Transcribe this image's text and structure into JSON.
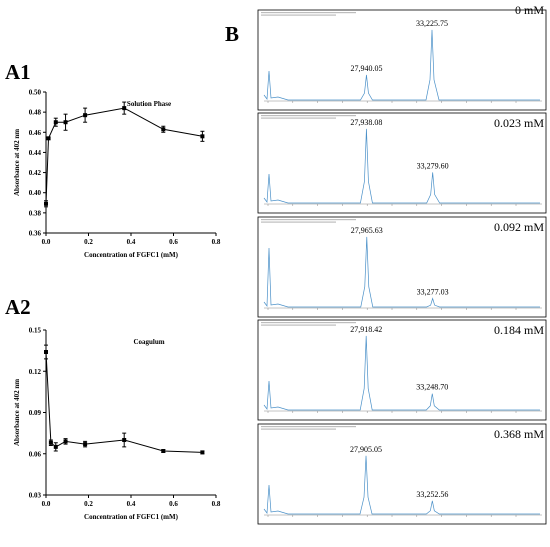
{
  "panels": {
    "A1": "A1",
    "A2": "A2",
    "B": "B"
  },
  "chart_data": [
    {
      "type": "line",
      "panel": "A1",
      "title": "Solution Phase",
      "xlabel": "Concentration of FGFC1 (mM)",
      "ylabel": "Absorbance at 402 nm",
      "xlim": [
        0.0,
        0.8
      ],
      "ylim": [
        0.36,
        0.5
      ],
      "x_ticks": [
        "0.0",
        "0.2",
        "0.4",
        "0.6",
        "0.8"
      ],
      "y_ticks": [
        "0.36",
        "0.38",
        "0.40",
        "0.42",
        "0.44",
        "0.46",
        "0.48",
        "0.50"
      ],
      "x": [
        0.0,
        0.012,
        0.046,
        0.092,
        0.184,
        0.368,
        0.552,
        0.736
      ],
      "y": [
        0.389,
        0.454,
        0.47,
        0.47,
        0.477,
        0.484,
        0.463,
        0.456
      ],
      "error": [
        0.003,
        0.001,
        0.004,
        0.008,
        0.007,
        0.006,
        0.003,
        0.005
      ],
      "marker_colour": "#000000"
    },
    {
      "type": "line",
      "panel": "A2",
      "title": "Coagulum",
      "xlabel": "Concentration of FGFC1 (mM)",
      "ylabel": "Absorbance at 402 nm",
      "xlim": [
        0.0,
        0.8
      ],
      "ylim": [
        0.03,
        0.15
      ],
      "x_ticks": [
        "0.0",
        "0.2",
        "0.4",
        "0.6",
        "0.8"
      ],
      "y_ticks": [
        "0.03",
        "0.06",
        "0.09",
        "0.12",
        "0.15"
      ],
      "x": [
        0.0,
        0.023,
        0.046,
        0.092,
        0.184,
        0.368,
        0.552,
        0.736
      ],
      "y": [
        0.134,
        0.068,
        0.065,
        0.069,
        0.067,
        0.07,
        0.062,
        0.061
      ],
      "error": [
        0.005,
        0.002,
        0.003,
        0.002,
        0.002,
        0.005,
        0.001,
        0.001
      ],
      "marker_colour": "#000000"
    },
    {
      "type": "line",
      "panel": "B",
      "trace_colour": "#4a90c8",
      "spectra": [
        {
          "concentration": "0 mM",
          "peak1_label": "27,940.05",
          "peak2_label": "33,225.75",
          "peak1_mass": 27940.05,
          "peak2_mass": 33225.75,
          "peak1_rel": 0.33,
          "peak2_rel": 0.9
        },
        {
          "concentration": "0.023 mM",
          "peak1_label": "27,938.08",
          "peak2_label": "33,279.60",
          "peak1_mass": 27938.08,
          "peak2_mass": 33279.6,
          "peak1_rel": 0.95,
          "peak2_rel": 0.4
        },
        {
          "concentration": "0.092 mM",
          "peak1_label": "27,965.63",
          "peak2_label": "33,277.03",
          "peak1_mass": 27965.63,
          "peak2_mass": 33277.03,
          "peak1_rel": 0.9,
          "peak2_rel": 0.12
        },
        {
          "concentration": "0.184 mM",
          "peak1_label": "27,918.42",
          "peak2_label": "33,248.70",
          "peak1_mass": 27918.42,
          "peak2_mass": 33248.7,
          "peak1_rel": 0.95,
          "peak2_rel": 0.22
        },
        {
          "concentration": "0.368 mM",
          "peak1_label": "27,905.05",
          "peak2_label": "33,252.56",
          "peak1_mass": 27905.05,
          "peak2_mass": 33252.56,
          "peak1_rel": 0.75,
          "peak2_rel": 0.18
        }
      ]
    }
  ]
}
